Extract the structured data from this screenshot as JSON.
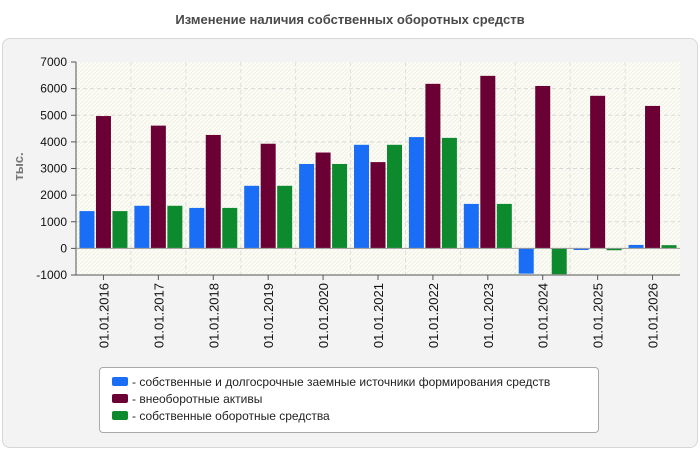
{
  "chart_data": {
    "type": "bar",
    "title": "Изменение наличия собственных оборотных средств",
    "ylabel": "тыс.",
    "xlabel": "",
    "ylim": [
      -1000,
      7000
    ],
    "yticks": [
      -1000,
      0,
      1000,
      2000,
      3000,
      4000,
      5000,
      6000,
      7000
    ],
    "grid": true,
    "legend_position": "bottom",
    "categories": [
      "01.01.2016",
      "01.01.2017",
      "01.01.2018",
      "01.01.2019",
      "01.01.2020",
      "01.01.2021",
      "01.01.2022",
      "01.01.2023",
      "01.01.2024",
      "01.01.2025",
      "01.01.2026"
    ],
    "series": [
      {
        "name": "- собственные и долгосрочные заемные источники формирования средств",
        "color": "#1a6ef5",
        "values": [
          1400,
          1600,
          1520,
          2350,
          3170,
          3890,
          4180,
          1670,
          -950,
          -60,
          130
        ]
      },
      {
        "name": "- внеоборотные активы",
        "color": "#6b0035",
        "values": [
          4970,
          4610,
          4260,
          3930,
          3600,
          3240,
          6180,
          6480,
          6100,
          5730,
          5350
        ]
      },
      {
        "name": "- собственные оборотные средства",
        "color": "#0e8a2e",
        "values": [
          1400,
          1600,
          1520,
          2350,
          3170,
          3890,
          4150,
          1670,
          -970,
          -70,
          120
        ]
      }
    ]
  }
}
